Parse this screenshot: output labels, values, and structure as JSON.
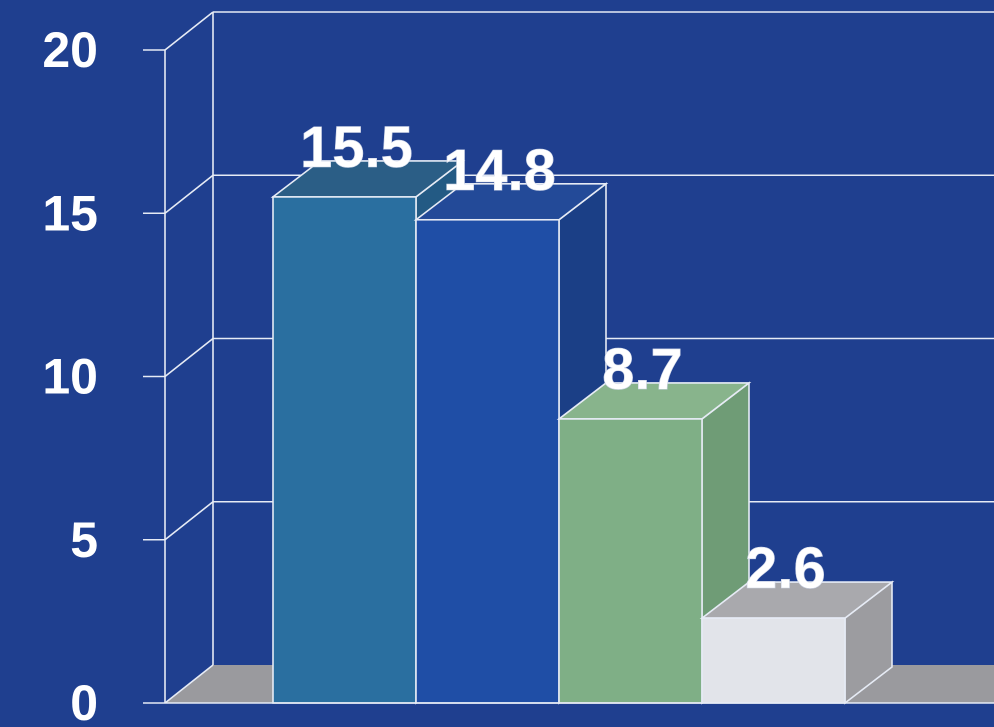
{
  "chart_data": {
    "type": "bar",
    "title": "",
    "xlabel": "",
    "ylabel": "",
    "ylim": [
      0,
      20
    ],
    "yticks": [
      0,
      5,
      10,
      15,
      20
    ],
    "categories": [
      "",
      "",
      "",
      ""
    ],
    "values": [
      15.5,
      14.8,
      8.7,
      2.6
    ],
    "data_labels": [
      "15.5",
      "14.8",
      "8.7",
      "2.6"
    ],
    "colors": [
      "#2a6fa0",
      "#1f4ea6",
      "#7faf86",
      "#e2e4ea"
    ],
    "top_colors": [
      "#2b5e86",
      "#234a98",
      "#88b48c",
      "#a9a9ad"
    ],
    "side_colors": [
      "#235a84",
      "#1b3f86",
      "#6f9c76",
      "#9c9ca0"
    ],
    "background_color": "#1f3f8f",
    "floor_color": "#9a9a9e",
    "grid": true,
    "style": "3d"
  }
}
